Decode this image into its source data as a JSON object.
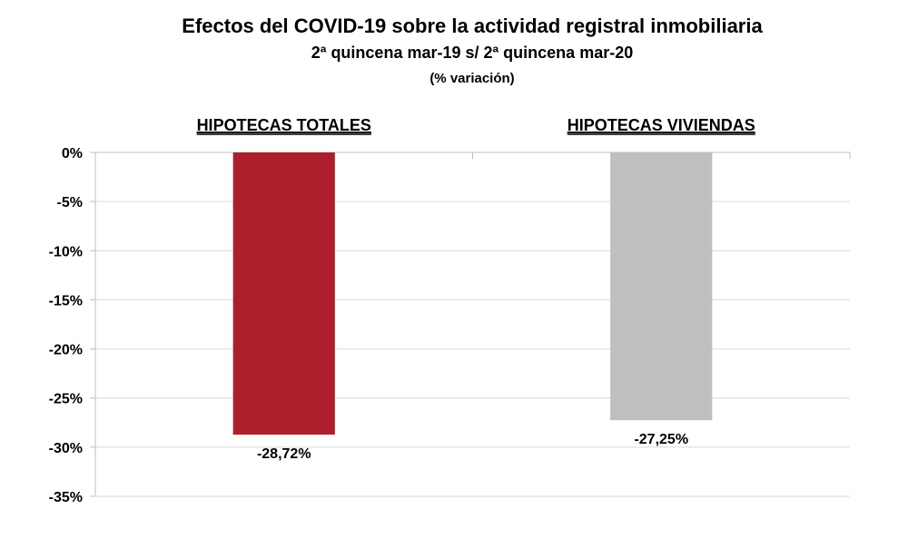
{
  "chart_data": {
    "type": "bar",
    "title": "Efectos del COVID-19 sobre la actividad registral inmobiliaria",
    "subtitle": "2ª quincena mar-19 s/ 2ª quincena mar-20",
    "unit_label": "(% variación)",
    "categories": [
      "HIPOTECAS TOTALES",
      "HIPOTECAS VIVIENDAS"
    ],
    "values": [
      -28.72,
      -27.25
    ],
    "data_labels": [
      "-28,72%",
      "-27,25%"
    ],
    "colors": [
      "#AD1F2D",
      "#BFBFBF"
    ],
    "ylim": [
      -35,
      0
    ],
    "yticks": [
      0,
      -5,
      -10,
      -15,
      -20,
      -25,
      -30,
      -35
    ],
    "ytick_labels": [
      "0%",
      "-5%",
      "-10%",
      "-15%",
      "-20%",
      "-25%",
      "-30%",
      "-35%"
    ],
    "grid": true,
    "category_labels_position": "top"
  }
}
